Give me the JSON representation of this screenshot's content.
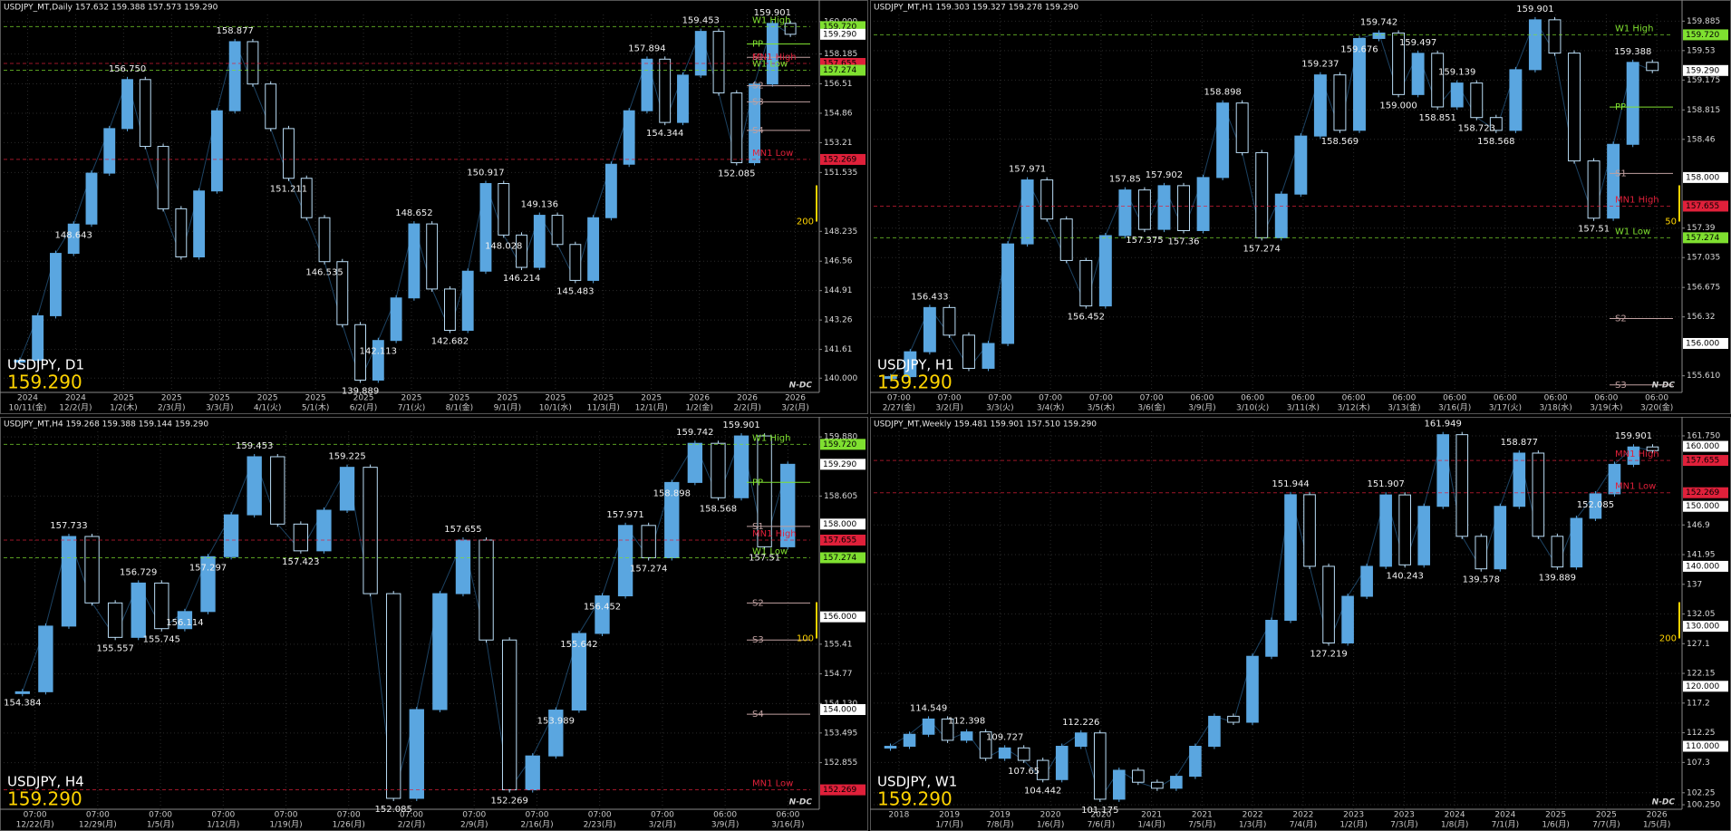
{
  "panels": [
    {
      "header": "USDJPY_MT,Daily  157.632 159.388 157.573 159.290",
      "symbol_label": "USDJPY, D1",
      "big_price": "159.290",
      "logo": "N-DC",
      "side_note": "200",
      "ylim": [
        139.2,
        160.4
      ],
      "ticks": [
        {
          "value": 160,
          "label": "160.000"
        },
        158.185,
        156.51,
        154.86,
        153.21,
        151.535,
        148.235,
        146.56,
        144.91,
        143.26,
        141.61,
        {
          "value": 140,
          "label": "140.000"
        }
      ],
      "tags": [
        {
          "value": 159.72,
          "label": "159.720",
          "color": "#7fe030"
        },
        {
          "value": 159.29,
          "label": "159.290",
          "color": "#ffffff"
        },
        {
          "value": 157.655,
          "label": "157.655",
          "color": "#e0203a"
        },
        {
          "value": 157.274,
          "label": "157.274",
          "color": "#7fe030"
        },
        {
          "value": 152.269,
          "label": "152.269",
          "color": "#e0203a"
        }
      ],
      "levels": [
        {
          "label": "W1 High",
          "value": 159.72,
          "color": "#7fe030",
          "style": "dashed"
        },
        {
          "label": "PP",
          "value": 158.75,
          "color": "#7fe030",
          "style": "short"
        },
        {
          "label": "S1",
          "value": 158.0,
          "color": "#c0a0a0",
          "style": "short"
        },
        {
          "label": "MN1 High",
          "value": 157.655,
          "color": "#e0203a",
          "style": "dashed"
        },
        {
          "label": "W1 Low",
          "value": 157.274,
          "color": "#7fe030",
          "style": "dashed"
        },
        {
          "label": "S2",
          "value": 156.4,
          "color": "#c0a0a0",
          "style": "short"
        },
        {
          "label": "S3",
          "value": 155.5,
          "color": "#c0a0a0",
          "style": "short"
        },
        {
          "label": "S4",
          "value": 153.9,
          "color": "#c0a0a0",
          "style": "short"
        },
        {
          "label": "MN1 Low",
          "value": 152.269,
          "color": "#e0203a",
          "style": "dashed"
        }
      ],
      "closes": [
        141.0,
        143.5,
        147.0,
        148.643,
        151.5,
        154.0,
        156.75,
        153.0,
        149.5,
        146.8,
        150.5,
        155.0,
        158.877,
        156.5,
        154.0,
        151.211,
        149.0,
        146.535,
        143.0,
        139.889,
        142.113,
        144.5,
        148.652,
        145.0,
        142.682,
        146.0,
        150.917,
        148.028,
        146.214,
        149.136,
        147.5,
        145.483,
        149.0,
        152.0,
        155.0,
        157.894,
        154.344,
        157.0,
        159.453,
        156.0,
        152.085,
        156.5,
        159.901,
        159.29
      ],
      "annotations": [
        148.643,
        {
          "value": 156.75,
          "label": "156.750"
        },
        158.877,
        151.211,
        146.535,
        139.889,
        142.113,
        148.652,
        142.682,
        150.917,
        148.028,
        146.214,
        149.136,
        145.483,
        157.894,
        154.344,
        159.453,
        152.085,
        159.901
      ],
      "time_labels": [
        [
          "2024",
          "10/11(金)"
        ],
        [
          "2024",
          "12/2(月)"
        ],
        [
          "2025",
          "1/2(木)"
        ],
        [
          "2025",
          "2/3(月)"
        ],
        [
          "2025",
          "3/3(月)"
        ],
        [
          "2025",
          "4/1(火)"
        ],
        [
          "2025",
          "5/1(木)"
        ],
        [
          "2025",
          "6/2(月)"
        ],
        [
          "2025",
          "7/1(火)"
        ],
        [
          "2025",
          "8/1(金)"
        ],
        [
          "2025",
          "9/1(月)"
        ],
        [
          "2025",
          "10/1(水)"
        ],
        [
          "2025",
          "11/3(月)"
        ],
        [
          "2025",
          "12/1(月)"
        ],
        [
          "2026",
          "1/2(金)"
        ],
        [
          "2026",
          "2/2(月)"
        ],
        [
          "2026",
          "3/2(月)"
        ]
      ]
    },
    {
      "header": "USDJPY_MT,H1  159.303 159.327 159.278 159.290",
      "symbol_label": "USDJPY, H1",
      "big_price": "159.290",
      "logo": "N-DC",
      "side_note": "50",
      "ylim": [
        155.41,
        159.965
      ],
      "ticks": [
        159.885,
        159.53,
        159.175,
        158.815,
        158.46,
        157.39,
        157.035,
        156.675,
        156.32,
        {
          "value": 155.61,
          "label": "155.610"
        }
      ],
      "tags": [
        {
          "value": 159.72,
          "label": "159.720",
          "color": "#7fe030"
        },
        {
          "value": 159.29,
          "label": "159.290",
          "color": "#ffffff"
        },
        {
          "value": 158.0,
          "label": "158.000",
          "color": "#ffffff"
        },
        {
          "value": 157.655,
          "label": "157.655",
          "color": "#e0203a"
        },
        {
          "value": 157.274,
          "label": "157.274",
          "color": "#7fe030"
        },
        {
          "value": 156.0,
          "label": "156.000",
          "color": "#ffffff"
        }
      ],
      "levels": [
        {
          "label": "W1 High",
          "value": 159.72,
          "color": "#7fe030",
          "style": "dashed"
        },
        {
          "label": "PP",
          "value": 158.85,
          "color": "#7fe030",
          "style": "short"
        },
        {
          "label": "S1",
          "value": 158.05,
          "color": "#c0a0a0",
          "style": "short"
        },
        {
          "label": "MN1 High",
          "value": 157.655,
          "color": "#e0203a",
          "style": "dashed"
        },
        {
          "label": "W1 Low",
          "value": 157.274,
          "color": "#7fe030",
          "style": "dashed"
        },
        {
          "label": "S2",
          "value": 156.3,
          "color": "#c0a0a0",
          "style": "short"
        },
        {
          "label": "S3",
          "value": 155.5,
          "color": "#c0a0a0",
          "style": "short"
        }
      ],
      "closes": [
        155.6,
        155.9,
        156.433,
        156.1,
        155.7,
        156.0,
        157.2,
        157.971,
        157.5,
        157.0,
        156.452,
        157.3,
        157.85,
        157.375,
        157.902,
        157.36,
        158.0,
        158.898,
        158.3,
        157.274,
        157.8,
        158.5,
        159.237,
        158.569,
        159.676,
        159.742,
        159.0,
        159.497,
        158.851,
        159.139,
        158.723,
        158.568,
        159.3,
        159.901,
        159.5,
        158.2,
        157.51,
        158.4,
        159.388,
        159.29
      ],
      "annotations": [
        156.433,
        157.971,
        156.452,
        157.85,
        157.375,
        157.902,
        157.36,
        158.898,
        157.274,
        159.237,
        158.569,
        159.676,
        159.742,
        {
          "value": 159.0,
          "label": "159.000"
        },
        159.497,
        158.851,
        159.139,
        158.723,
        158.568,
        159.901,
        157.51,
        159.388
      ],
      "time_labels": [
        [
          "07:00",
          "2/27(金)"
        ],
        [
          "07:00",
          "3/2(月)"
        ],
        [
          "07:00",
          "3/3(火)"
        ],
        [
          "07:00",
          "3/4(水)"
        ],
        [
          "07:00",
          "3/5(木)"
        ],
        [
          "07:00",
          "3/6(金)"
        ],
        [
          "06:00",
          "3/9(月)"
        ],
        [
          "06:00",
          "3/10(火)"
        ],
        [
          "06:00",
          "3/11(水)"
        ],
        [
          "06:00",
          "3/12(木)"
        ],
        [
          "06:00",
          "3/13(金)"
        ],
        [
          "06:00",
          "3/16(月)"
        ],
        [
          "06:00",
          "3/17(火)"
        ],
        [
          "06:00",
          "3/18(水)"
        ],
        [
          "06:00",
          "3/19(木)"
        ],
        [
          "06:00",
          "3/20(金)"
        ]
      ]
    },
    {
      "header": "USDJPY_MT,H4  159.268 159.388 159.144 159.290",
      "symbol_label": "USDJPY, H4",
      "big_price": "159.290",
      "logo": "N-DC",
      "side_note": "100",
      "ylim": [
        151.85,
        160.0
      ],
      "ticks": [
        {
          "value": 159.88,
          "label": "159.880"
        },
        158.605,
        155.41,
        154.77,
        {
          "value": 154.13,
          "label": "154.130"
        },
        153.495,
        152.855
      ],
      "tags": [
        {
          "value": 159.72,
          "label": "159.720",
          "color": "#7fe030"
        },
        {
          "value": 159.29,
          "label": "159.290",
          "color": "#ffffff"
        },
        {
          "value": 158.0,
          "label": "158.000",
          "color": "#ffffff"
        },
        {
          "value": 157.655,
          "label": "157.655",
          "color": "#e0203a"
        },
        {
          "value": 157.274,
          "label": "157.274",
          "color": "#7fe030"
        },
        {
          "value": 156.0,
          "label": "156.000",
          "color": "#ffffff"
        },
        {
          "value": 154.0,
          "label": "154.000",
          "color": "#ffffff"
        },
        {
          "value": 152.269,
          "label": "152.269",
          "color": "#e0203a"
        }
      ],
      "levels": [
        {
          "label": "W1 High",
          "value": 159.72,
          "color": "#7fe030",
          "style": "dashed"
        },
        {
          "label": "PP",
          "value": 158.9,
          "color": "#7fe030",
          "style": "short"
        },
        {
          "label": "S1",
          "value": 157.95,
          "color": "#c0a0a0",
          "style": "short"
        },
        {
          "label": "MN1 High",
          "value": 157.655,
          "color": "#e0203a",
          "style": "dashed"
        },
        {
          "label": "W1 Low",
          "value": 157.274,
          "color": "#7fe030",
          "style": "dashed"
        },
        {
          "label": "S2",
          "value": 156.3,
          "color": "#c0a0a0",
          "style": "short"
        },
        {
          "label": "S3",
          "value": 155.5,
          "color": "#c0a0a0",
          "style": "short"
        },
        {
          "label": "S4",
          "value": 153.9,
          "color": "#c0a0a0",
          "style": "short"
        },
        {
          "label": "MN1 Low",
          "value": 152.269,
          "color": "#e0203a",
          "style": "dashed"
        }
      ],
      "closes": [
        154.384,
        155.8,
        157.733,
        156.3,
        155.557,
        156.729,
        155.745,
        156.114,
        157.297,
        158.2,
        159.453,
        158.0,
        157.423,
        158.3,
        159.225,
        156.5,
        152.085,
        154.0,
        156.5,
        157.655,
        155.5,
        152.269,
        153.0,
        153.989,
        155.642,
        156.452,
        157.971,
        157.274,
        158.898,
        159.742,
        158.568,
        159.901,
        157.51,
        159.29
      ],
      "annotations": [
        154.384,
        157.733,
        155.557,
        156.729,
        155.745,
        156.114,
        157.297,
        159.453,
        157.423,
        159.225,
        152.085,
        157.655,
        152.269,
        153.989,
        155.642,
        156.452,
        157.971,
        157.274,
        158.898,
        159.742,
        158.568,
        159.901,
        157.51
      ],
      "time_labels": [
        [
          "07:00",
          "12/22(月)"
        ],
        [
          "07:00",
          "12/29(月)"
        ],
        [
          "07:00",
          "1/5(月)"
        ],
        [
          "07:00",
          "1/12(月)"
        ],
        [
          "07:00",
          "1/19(月)"
        ],
        [
          "07:00",
          "1/26(月)"
        ],
        [
          "07:00",
          "2/2(月)"
        ],
        [
          "07:00",
          "2/9(月)"
        ],
        [
          "07:00",
          "2/16(月)"
        ],
        [
          "07:00",
          "2/23(月)"
        ],
        [
          "07:00",
          "3/2(月)"
        ],
        [
          "06:00",
          "3/9(月)"
        ],
        [
          "06:00",
          "3/16(月)"
        ]
      ]
    },
    {
      "header": "USDJPY_MT,Weekly  159.481 159.901 157.510 159.290",
      "symbol_label": "USDJPY, W1",
      "big_price": "159.290",
      "logo": "N-DC",
      "side_note": "200",
      "ylim": [
        99.5,
        162.5
      ],
      "ticks": [
        {
          "value": 161.75,
          "label": "161.750"
        },
        146.9,
        141.95,
        137.0,
        132.05,
        127.1,
        122.15,
        117.2,
        112.25,
        107.3,
        102.25,
        {
          "value": 100.25,
          "label": "100.250"
        }
      ],
      "tags": [
        {
          "value": 160.0,
          "label": "160.000",
          "color": "#ffffff"
        },
        {
          "value": 157.655,
          "label": "157.655",
          "color": "#e0203a"
        },
        {
          "value": 152.269,
          "label": "152.269",
          "color": "#e0203a"
        },
        {
          "value": 150.0,
          "label": "150.000",
          "color": "#ffffff"
        },
        {
          "value": 140.0,
          "label": "140.000",
          "color": "#ffffff"
        },
        {
          "value": 130.0,
          "label": "130.000",
          "color": "#ffffff"
        },
        {
          "value": 120.0,
          "label": "120.000",
          "color": "#ffffff"
        },
        {
          "value": 110.0,
          "label": "110.000",
          "color": "#ffffff"
        }
      ],
      "levels": [
        {
          "label": "MN1 High",
          "value": 157.655,
          "color": "#e0203a",
          "style": "dashed"
        },
        {
          "label": "MN1 Low",
          "value": 152.269,
          "color": "#e0203a",
          "style": "dashed"
        }
      ],
      "closes": [
        110.0,
        112.0,
        114.549,
        111.0,
        112.398,
        108.0,
        109.727,
        107.65,
        104.442,
        110.0,
        112.226,
        101.175,
        106.0,
        104.0,
        103.0,
        105.0,
        110.0,
        115.0,
        114.0,
        125.0,
        131.0,
        151.944,
        140.0,
        127.219,
        135.0,
        140.0,
        151.907,
        140.243,
        150.0,
        161.949,
        145.0,
        139.578,
        150.0,
        158.877,
        145.0,
        139.889,
        148.0,
        152.085,
        157.0,
        159.901,
        159.29
      ],
      "annotations": [
        114.549,
        112.398,
        109.727,
        107.65,
        104.442,
        112.226,
        101.175,
        151.944,
        127.219,
        151.907,
        140.243,
        161.949,
        139.578,
        158.877,
        139.889,
        152.085,
        159.901
      ],
      "time_labels": [
        [
          "2018",
          ""
        ],
        [
          "2019",
          "1/7(月)"
        ],
        [
          "2019",
          "7/8(月)"
        ],
        [
          "2020",
          "1/6(月)"
        ],
        [
          "2020",
          "7/6(月)"
        ],
        [
          "2021",
          "1/4(月)"
        ],
        [
          "2021",
          "7/5(月)"
        ],
        [
          "2022",
          "1/3(月)"
        ],
        [
          "2022",
          "7/4(月)"
        ],
        [
          "2023",
          "1/2(月)"
        ],
        [
          "2023",
          "7/3(月)"
        ],
        [
          "2024",
          "1/8(月)"
        ],
        [
          "2024",
          "7/1(月)"
        ],
        [
          "2025",
          "1/6(月)"
        ],
        [
          "2025",
          "7/7(月)"
        ],
        [
          "2026",
          "1/5(月)"
        ]
      ]
    }
  ]
}
